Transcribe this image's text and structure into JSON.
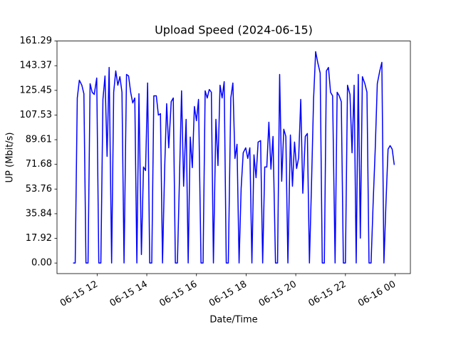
{
  "chart_data": {
    "type": "line",
    "title": "Upload Speed (2024-06-15)",
    "x_label": "Date/Time",
    "y_label": "UP (Mbit/s)",
    "x": [
      "2024-06-15T11:02",
      "2024-06-15T11:07",
      "2024-06-15T11:12",
      "2024-06-15T11:17",
      "2024-06-15T11:23",
      "2024-06-15T11:28",
      "2024-06-15T11:33",
      "2024-06-15T11:38",
      "2024-06-15T11:43",
      "2024-06-15T11:48",
      "2024-06-15T11:53",
      "2024-06-15T11:59",
      "2024-06-15T12:04",
      "2024-06-15T12:09",
      "2024-06-15T12:14",
      "2024-06-15T12:19",
      "2024-06-15T12:24",
      "2024-06-15T12:29",
      "2024-06-15T12:35",
      "2024-06-15T12:40",
      "2024-06-15T12:45",
      "2024-06-15T12:50",
      "2024-06-15T12:55",
      "2024-06-15T13:00",
      "2024-06-15T13:05",
      "2024-06-15T13:11",
      "2024-06-15T13:16",
      "2024-06-15T13:21",
      "2024-06-15T13:26",
      "2024-06-15T13:31",
      "2024-06-15T13:36",
      "2024-06-15T13:41",
      "2024-06-15T13:47",
      "2024-06-15T13:52",
      "2024-06-15T13:57",
      "2024-06-15T14:02",
      "2024-06-15T14:07",
      "2024-06-15T14:12",
      "2024-06-15T14:17",
      "2024-06-15T14:23",
      "2024-06-15T14:28",
      "2024-06-15T14:33",
      "2024-06-15T14:38",
      "2024-06-15T14:43",
      "2024-06-15T14:48",
      "2024-06-15T14:53",
      "2024-06-15T14:59",
      "2024-06-15T15:04",
      "2024-06-15T15:09",
      "2024-06-15T15:14",
      "2024-06-15T15:19",
      "2024-06-15T15:24",
      "2024-06-15T15:29",
      "2024-06-15T15:35",
      "2024-06-15T15:40",
      "2024-06-15T15:45",
      "2024-06-15T15:50",
      "2024-06-15T15:55",
      "2024-06-15T16:00",
      "2024-06-15T16:05",
      "2024-06-15T16:11",
      "2024-06-15T16:16",
      "2024-06-15T16:21",
      "2024-06-15T16:26",
      "2024-06-15T16:31",
      "2024-06-15T16:36",
      "2024-06-15T16:41",
      "2024-06-15T16:47",
      "2024-06-15T16:52",
      "2024-06-15T16:57",
      "2024-06-15T17:02",
      "2024-06-15T17:07",
      "2024-06-15T17:12",
      "2024-06-15T17:17",
      "2024-06-15T17:23",
      "2024-06-15T17:28",
      "2024-06-15T17:33",
      "2024-06-15T17:38",
      "2024-06-15T17:43",
      "2024-06-15T17:48",
      "2024-06-15T17:53",
      "2024-06-15T17:59",
      "2024-06-15T18:04",
      "2024-06-15T18:09",
      "2024-06-15T18:14",
      "2024-06-15T18:19",
      "2024-06-15T18:24",
      "2024-06-15T18:29",
      "2024-06-15T18:35",
      "2024-06-15T18:40",
      "2024-06-15T18:45",
      "2024-06-15T18:50",
      "2024-06-15T18:55",
      "2024-06-15T19:00",
      "2024-06-15T19:05",
      "2024-06-15T19:11",
      "2024-06-15T19:16",
      "2024-06-15T19:21",
      "2024-06-15T19:26",
      "2024-06-15T19:31",
      "2024-06-15T19:36",
      "2024-06-15T19:41",
      "2024-06-15T19:47",
      "2024-06-15T19:52",
      "2024-06-15T19:57",
      "2024-06-15T20:02",
      "2024-06-15T20:07",
      "2024-06-15T20:12",
      "2024-06-15T20:17",
      "2024-06-15T20:23",
      "2024-06-15T20:28",
      "2024-06-15T20:33",
      "2024-06-15T20:38",
      "2024-06-15T20:43",
      "2024-06-15T20:48",
      "2024-06-15T20:53",
      "2024-06-15T20:59",
      "2024-06-15T21:04",
      "2024-06-15T21:09",
      "2024-06-15T21:14",
      "2024-06-15T21:19",
      "2024-06-15T21:24",
      "2024-06-15T21:29",
      "2024-06-15T21:35",
      "2024-06-15T21:40",
      "2024-06-15T21:45",
      "2024-06-15T21:50",
      "2024-06-15T21:55",
      "2024-06-15T22:00",
      "2024-06-15T22:05",
      "2024-06-15T22:11",
      "2024-06-15T22:16",
      "2024-06-15T22:21",
      "2024-06-15T22:26",
      "2024-06-15T22:31",
      "2024-06-15T22:36",
      "2024-06-15T22:41",
      "2024-06-15T22:47",
      "2024-06-15T22:52",
      "2024-06-15T22:57",
      "2024-06-15T23:02",
      "2024-06-15T23:07",
      "2024-06-15T23:12",
      "2024-06-15T23:17",
      "2024-06-15T23:23",
      "2024-06-15T23:28",
      "2024-06-15T23:33",
      "2024-06-15T23:38",
      "2024-06-15T23:43",
      "2024-06-15T23:48",
      "2024-06-15T23:53",
      "2024-06-15T23:58"
    ],
    "series": [
      {
        "name": "UP",
        "color": "#0000ff",
        "values": [
          0,
          0,
          119.9,
          132.8,
          129.2,
          123.0,
          0,
          0,
          130.3,
          124.1,
          122.5,
          134.4,
          0,
          0,
          118.9,
          135.9,
          77.5,
          142.1,
          0,
          124.1,
          139.6,
          129.2,
          135.4,
          124.1,
          0,
          137.0,
          135.9,
          124.1,
          116.3,
          119.9,
          0,
          123.0,
          6.2,
          69.8,
          67.2,
          130.8,
          0,
          0,
          121.5,
          121.5,
          107.5,
          108.5,
          0,
          67.2,
          115.8,
          83.7,
          117.3,
          119.9,
          0,
          0,
          62.0,
          125.1,
          55.8,
          104.4,
          0,
          91.5,
          69.3,
          113.7,
          103.4,
          118.9,
          0,
          0,
          125.1,
          119.9,
          126.1,
          124.1,
          0,
          104.4,
          70.8,
          129.2,
          119.9,
          131.8,
          0,
          0,
          119.9,
          130.8,
          76.0,
          86.3,
          0,
          54.3,
          80.1,
          83.7,
          76.0,
          83.7,
          0,
          78.6,
          62.0,
          87.9,
          88.9,
          0,
          69.8,
          69.8,
          102.3,
          68.2,
          92.0,
          0,
          0,
          137.0,
          59.4,
          97.2,
          92.0,
          0,
          93.0,
          55.8,
          87.9,
          68.7,
          76.5,
          118.9,
          50.7,
          92.0,
          94.1,
          0,
          56.9,
          118.9,
          153.6,
          145.8,
          138.0,
          0,
          0,
          139.6,
          142.1,
          124.1,
          121.5,
          0,
          124.1,
          121.5,
          117.3,
          0,
          0,
          129.2,
          122.5,
          80.1,
          129.2,
          0,
          137.0,
          18.1,
          135.4,
          130.3,
          124.1,
          0,
          0,
          43.9,
          82.7,
          130.3,
          139.6,
          145.8,
          0,
          43.9,
          82.7,
          85.3,
          82.7,
          71.3
        ]
      }
    ],
    "xlim": [
      "2024-06-15T10:23",
      "2024-06-16T00:37"
    ],
    "xticks": [
      {
        "value": "2024-06-15T12:00",
        "label": "06-15 12"
      },
      {
        "value": "2024-06-15T14:00",
        "label": "06-15 14"
      },
      {
        "value": "2024-06-15T16:00",
        "label": "06-15 16"
      },
      {
        "value": "2024-06-15T18:00",
        "label": "06-15 18"
      },
      {
        "value": "2024-06-15T20:00",
        "label": "06-15 20"
      },
      {
        "value": "2024-06-15T22:00",
        "label": "06-15 22"
      },
      {
        "value": "2024-06-16T00:00",
        "label": "06-16 00"
      }
    ],
    "ylim": [
      -7.68,
      161.29
    ],
    "yticks": [
      {
        "value": 0,
        "label": "0.00"
      },
      17.92,
      35.84,
      53.76,
      71.68,
      89.61,
      107.53,
      125.45,
      143.37,
      161.29
    ],
    "grid": false
  }
}
